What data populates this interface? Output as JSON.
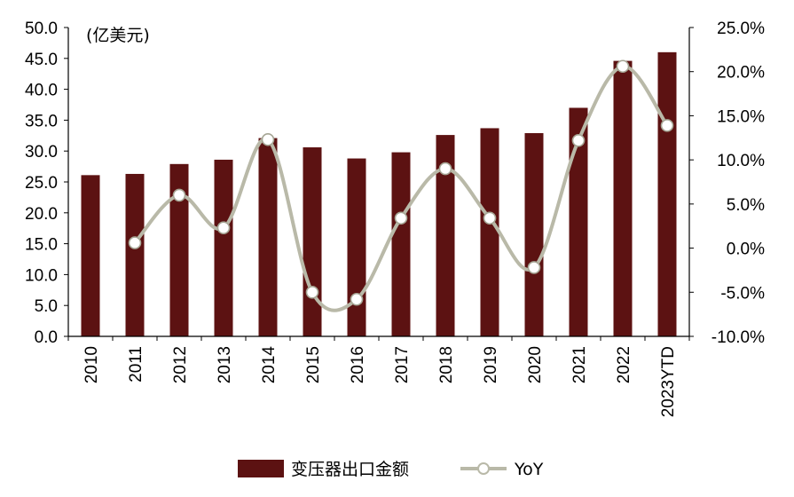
{
  "chart_data": {
    "type": "bar",
    "unit_label": "(亿美元)",
    "categories": [
      "2010",
      "2011",
      "2012",
      "2013",
      "2014",
      "2015",
      "2016",
      "2017",
      "2018",
      "2019",
      "2020",
      "2021",
      "2022",
      "2023YTD"
    ],
    "series": [
      {
        "name": "变压器出口金额",
        "type": "bar",
        "axis": "left",
        "color": "#5c1212",
        "values": [
          26.1,
          26.3,
          27.9,
          28.6,
          32.1,
          30.6,
          28.8,
          29.8,
          32.6,
          33.7,
          32.9,
          37.0,
          44.6,
          46.0
        ]
      },
      {
        "name": "YoY",
        "type": "line",
        "axis": "right",
        "color": "#b9b9a8",
        "values": [
          null,
          0.6,
          6.0,
          2.3,
          12.3,
          -5.0,
          -5.8,
          3.4,
          9.0,
          3.4,
          -2.2,
          12.2,
          20.6,
          13.9
        ]
      }
    ],
    "y_left": {
      "min": 0,
      "max": 50,
      "step": 5,
      "ticks": [
        "0.0",
        "5.0",
        "10.0",
        "15.0",
        "20.0",
        "25.0",
        "30.0",
        "35.0",
        "40.0",
        "45.0",
        "50.0"
      ]
    },
    "y_right": {
      "min": -10,
      "max": 25,
      "step": 5,
      "ticks": [
        "-10.0%",
        "-5.0%",
        "0.0%",
        "5.0%",
        "10.0%",
        "15.0%",
        "20.0%",
        "25.0%"
      ]
    },
    "legend": {
      "position": "bottom"
    },
    "grid": false
  }
}
